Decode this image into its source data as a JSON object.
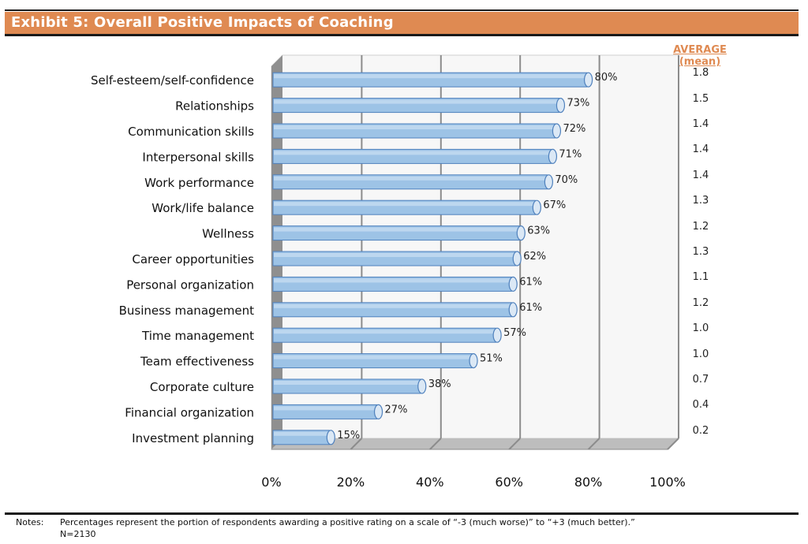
{
  "header": {
    "title": "Exhibit 5: Overall Positive Impacts of Coaching"
  },
  "average_header": {
    "line1": "AVERAGE",
    "line2": "(mean)"
  },
  "chart_data": {
    "type": "bar",
    "orientation": "horizontal",
    "title": "Exhibit 5: Overall Positive Impacts of Coaching",
    "categories": [
      "Self-esteem/self-confidence",
      "Relationships",
      "Communication skills",
      "Interpersonal skills",
      "Work performance",
      "Work/life balance",
      "Wellness",
      "Career opportunities",
      "Personal organization",
      "Business management",
      "Time management",
      "Team effectiveness",
      "Corporate culture",
      "Financial organization",
      "Investment planning"
    ],
    "values": [
      80,
      73,
      72,
      71,
      70,
      67,
      63,
      62,
      61,
      61,
      57,
      51,
      38,
      27,
      15
    ],
    "value_labels": [
      "80%",
      "73%",
      "72%",
      "71%",
      "70%",
      "67%",
      "63%",
      "62%",
      "61%",
      "61%",
      "57%",
      "51%",
      "38%",
      "27%",
      "15%"
    ],
    "averages": [
      "1.8",
      "1.5",
      "1.4",
      "1.4",
      "1.4",
      "1.3",
      "1.2",
      "1.3",
      "1.1",
      "1.2",
      "1.0",
      "1.0",
      "0.7",
      "0.4",
      "0.2"
    ],
    "x_ticks": [
      "0%",
      "20%",
      "40%",
      "60%",
      "80%",
      "100%"
    ],
    "xlim": [
      0,
      100
    ],
    "grid": true,
    "colors": {
      "bar_fill": "#9dc3e6",
      "bar_edge": "#4f81bd",
      "bar_cap": "#dbe8f5",
      "wall": "#f7f7f7",
      "floor": "#bdbdbd",
      "gridline": "#8c8c8c"
    }
  },
  "notes": {
    "label": "Notes:",
    "text": "Percentages represent the portion of respondents awarding a positive rating on a scale of “-3 (much worse)” to “+3 (much better).”",
    "n": "N=2130"
  }
}
